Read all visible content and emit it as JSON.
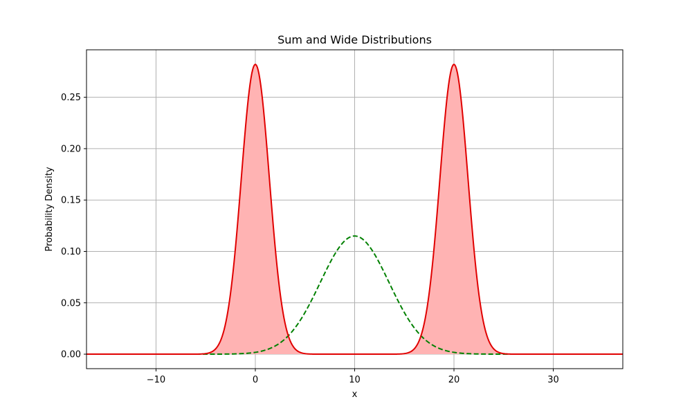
{
  "chart_data": {
    "type": "line",
    "title": "Sum and Wide Distributions",
    "xlabel": "x",
    "ylabel": "Probability Density",
    "xlim": [
      -17,
      37
    ],
    "ylim": [
      -0.0141,
      0.2962
    ],
    "x_ticks": [
      -10,
      0,
      10,
      20,
      30
    ],
    "x_tick_labels": [
      "−10",
      "0",
      "10",
      "20",
      "30"
    ],
    "y_ticks": [
      0.0,
      0.05,
      0.1,
      0.15,
      0.2,
      0.25
    ],
    "y_tick_labels": [
      "0.00",
      "0.05",
      "0.10",
      "0.15",
      "0.20",
      "0.25"
    ],
    "grid": true,
    "legend": "none",
    "series": [
      {
        "kind": "mixture",
        "style": "solid",
        "color": "#e00000",
        "fill_color": "#ffb3b3",
        "filled": true,
        "components": [
          {
            "mean": 0,
            "std": 1.414,
            "weight": 1
          },
          {
            "mean": 20,
            "std": 1.414,
            "weight": 1
          }
        ],
        "peak_density": 0.282
      },
      {
        "kind": "normal",
        "style": "dashed",
        "color": "#008000",
        "filled": false,
        "components": [
          {
            "mean": 10,
            "std": 3.464,
            "weight": 1
          }
        ],
        "peak_density": 0.115
      }
    ]
  }
}
